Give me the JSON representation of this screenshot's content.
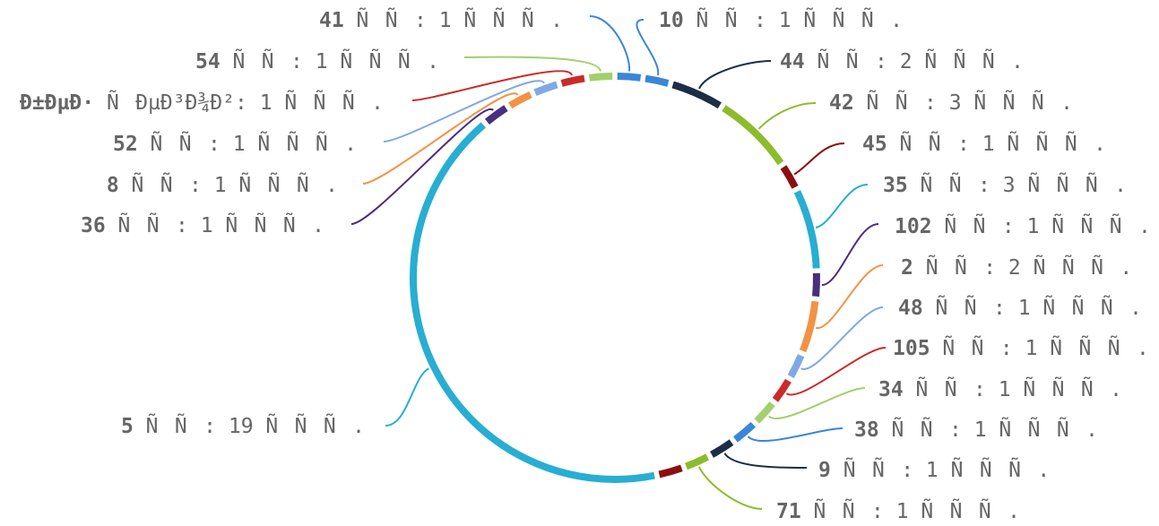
{
  "chart_data": {
    "type": "pie",
    "style": "donut-ring",
    "legend": "none",
    "slices": [
      {
        "label": "10 ÑÑ",
        "bold": "10",
        "rest": " ÑÑ: 1 ÑÑÑ.",
        "value": 1,
        "color": "#3a86d8"
      },
      {
        "label": "44 ÑÑ",
        "bold": "44",
        "rest": " ÑÑ: 2 ÑÑÑ.",
        "value": 2,
        "color": "#1c2e45"
      },
      {
        "label": "42 ÑÑ",
        "bold": "42",
        "rest": " ÑÑ: 3 ÑÑÑ.",
        "value": 3,
        "color": "#8bbc2c"
      },
      {
        "label": "45 ÑÑ",
        "bold": "45",
        "rest": " ÑÑ: 1 ÑÑÑ.",
        "value": 1,
        "color": "#8c0f0f"
      },
      {
        "label": "35 ÑÑ",
        "bold": "35",
        "rest": " ÑÑ: 3 ÑÑÑ.",
        "value": 3,
        "color": "#27aed2"
      },
      {
        "label": "102 ÑÑ",
        "bold": "102",
        "rest": " ÑÑ: 1 ÑÑÑ.",
        "value": 1,
        "color": "#4b2d7f"
      },
      {
        "label": "2 ÑÑ",
        "bold": "2",
        "rest": " ÑÑ: 2 ÑÑÑ.",
        "value": 2,
        "color": "#f29344"
      },
      {
        "label": "48 ÑÑ",
        "bold": "48",
        "rest": " ÑÑ: 1 ÑÑÑ.",
        "value": 1,
        "color": "#7ea9e3"
      },
      {
        "label": "105 ÑÑ",
        "bold": "105",
        "rest": " ÑÑ: 1 ÑÑÑ.",
        "value": 1,
        "color": "#cc2a2a"
      },
      {
        "label": "34 ÑÑ",
        "bold": "34",
        "rest": " ÑÑ: 1 ÑÑÑ.",
        "value": 1,
        "color": "#a3cf6c"
      },
      {
        "label": "38 ÑÑ",
        "bold": "38",
        "rest": " ÑÑ: 1 ÑÑÑ.",
        "value": 1,
        "color": "#3a86d8"
      },
      {
        "label": "9 ÑÑ",
        "bold": "9",
        "rest": " ÑÑ: 1 ÑÑÑ.",
        "value": 1,
        "color": "#1c2e45"
      },
      {
        "label": "71 ÑÑ",
        "bold": "71",
        "rest": " ÑÑ: 1 ÑÑÑ.",
        "value": 1,
        "color": "#8bbc2c"
      },
      {
        "label": "Ð±ÐµÐ· ÑÐµÐ³Ð¾Ð²",
        "bold": "",
        "rest": "",
        "value": 1,
        "color": "#8c0f0f",
        "hidden_label": true
      },
      {
        "label": "5 ÑÑ",
        "bold": "5",
        "rest": " ÑÑ: 19 ÑÑÑ.",
        "value": 19,
        "color": "#27aed2"
      },
      {
        "label": "36 ÑÑ",
        "bold": "36",
        "rest": " ÑÑ: 1 ÑÑÑ.",
        "value": 1,
        "color": "#4b2d7f"
      },
      {
        "label": "8 ÑÑ",
        "bold": "8",
        "rest": " ÑÑ: 1 ÑÑÑ.",
        "value": 1,
        "color": "#f29344"
      },
      {
        "label": "52 ÑÑ",
        "bold": "52",
        "rest": " ÑÑ: 1 ÑÑÑ.",
        "value": 1,
        "color": "#7ea9e3"
      },
      {
        "label": "Ð±ÐµÐ· ÑÐµÐ³Ð¾Ð²",
        "bold": "Ð±ÐµÐ·",
        "rest": " ÑÐµÐ³Ð¾Ð²: 1 ÑÑÑ.",
        "value": 1,
        "color": "#cc2a2a"
      },
      {
        "label": "54 ÑÑ",
        "bold": "54",
        "rest": " ÑÑ: 1 ÑÑÑ.",
        "value": 1,
        "color": "#a3cf6c"
      },
      {
        "label": "41 ÑÑ",
        "bold": "41",
        "rest": " ÑÑ: 1 ÑÑÑ.",
        "value": 1,
        "color": "#3a86d8"
      }
    ]
  }
}
